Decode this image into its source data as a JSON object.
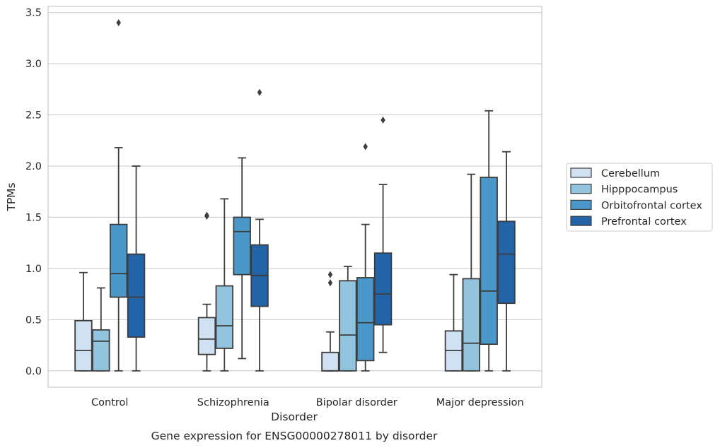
{
  "chart_data": {
    "type": "box",
    "caption": "Gene expression for ENSG00000278011 by disorder",
    "xlabel": "Disorder",
    "ylabel": "TPMs",
    "ylim": [
      -0.16,
      3.56
    ],
    "yticks": [
      "0.0",
      "0.5",
      "1.0",
      "1.5",
      "2.0",
      "2.5",
      "3.0",
      "3.5"
    ],
    "grid": true,
    "legend_position": "right",
    "categories": [
      "Control",
      "Schizophrenia",
      "Bipolar disorder",
      "Major depression"
    ],
    "series": [
      {
        "name": "Cerebellum",
        "color": "#cfe1f2",
        "boxes": [
          {
            "whislo": 0.0,
            "q1": 0.0,
            "med": 0.2,
            "q3": 0.49,
            "whishi": 0.96,
            "fliers": []
          },
          {
            "whislo": 0.0,
            "q1": 0.16,
            "med": 0.31,
            "q3": 0.52,
            "whishi": 0.65,
            "fliers": [
              1.51,
              1.52
            ]
          },
          {
            "whislo": 0.0,
            "q1": 0.0,
            "med": 0.0,
            "q3": 0.18,
            "whishi": 0.38,
            "fliers": [
              0.86,
              0.94
            ]
          },
          {
            "whislo": 0.0,
            "q1": 0.0,
            "med": 0.2,
            "q3": 0.39,
            "whishi": 0.94,
            "fliers": []
          }
        ]
      },
      {
        "name": "Hipppocampus",
        "color": "#93c4de",
        "boxes": [
          {
            "whislo": 0.0,
            "q1": 0.0,
            "med": 0.29,
            "q3": 0.4,
            "whishi": 0.81,
            "fliers": []
          },
          {
            "whislo": 0.0,
            "q1": 0.22,
            "med": 0.44,
            "q3": 0.83,
            "whishi": 1.68,
            "fliers": []
          },
          {
            "whislo": 0.0,
            "q1": 0.0,
            "med": 0.35,
            "q3": 0.88,
            "whishi": 1.02,
            "fliers": []
          },
          {
            "whislo": 0.0,
            "q1": 0.0,
            "med": 0.27,
            "q3": 0.9,
            "whishi": 1.92,
            "fliers": []
          }
        ]
      },
      {
        "name": "Orbitofrontal cortex",
        "color": "#4a98c9",
        "boxes": [
          {
            "whislo": 0.0,
            "q1": 0.72,
            "med": 0.95,
            "q3": 1.43,
            "whishi": 2.18,
            "fliers": [
              3.4
            ]
          },
          {
            "whislo": 0.12,
            "q1": 0.94,
            "med": 1.36,
            "q3": 1.5,
            "whishi": 2.08,
            "fliers": []
          },
          {
            "whislo": 0.0,
            "q1": 0.1,
            "med": 0.47,
            "q3": 0.91,
            "whishi": 1.43,
            "fliers": [
              2.19
            ]
          },
          {
            "whislo": 0.0,
            "q1": 0.26,
            "med": 0.78,
            "q3": 1.89,
            "whishi": 2.54,
            "fliers": []
          }
        ]
      },
      {
        "name": "Prefrontal cortex",
        "color": "#2264a7",
        "boxes": [
          {
            "whislo": 0.0,
            "q1": 0.33,
            "med": 0.72,
            "q3": 1.14,
            "whishi": 2.0,
            "fliers": []
          },
          {
            "whislo": 0.0,
            "q1": 0.63,
            "med": 0.93,
            "q3": 1.23,
            "whishi": 1.48,
            "fliers": [
              2.72
            ]
          },
          {
            "whislo": 0.18,
            "q1": 0.45,
            "med": 0.75,
            "q3": 1.15,
            "whishi": 1.82,
            "fliers": [
              2.45
            ]
          },
          {
            "whislo": 0.0,
            "q1": 0.66,
            "med": 1.14,
            "q3": 1.46,
            "whishi": 2.14,
            "fliers": []
          }
        ]
      }
    ]
  }
}
